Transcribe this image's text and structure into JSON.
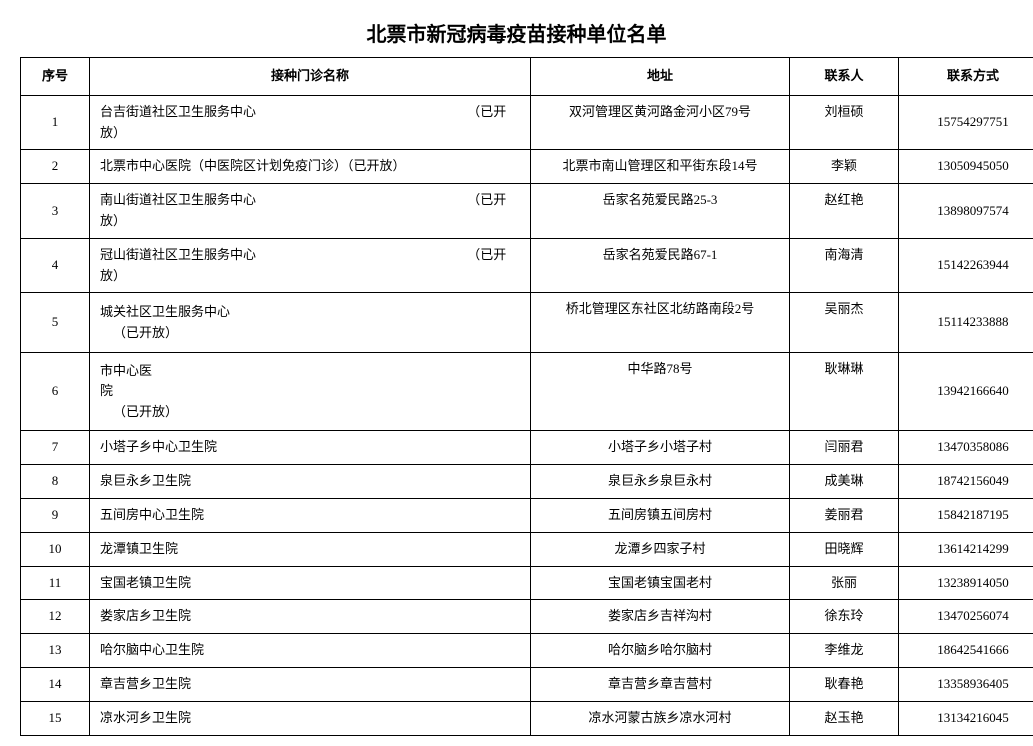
{
  "title": "北票市新冠病毒疫苗接种单位名单",
  "columns": [
    "序号",
    "接种门诊名称",
    "地址",
    "联系人",
    "联系方式"
  ],
  "rows": [
    {
      "seq": "1",
      "name": "台吉街道社区卫生服务中心                                                                 （已开放）",
      "addr": "双河管理区黄河路金河小区79号",
      "person": "刘桓硕",
      "phone": "15754297751",
      "h": "tall"
    },
    {
      "seq": "2",
      "name": "北票市中心医院（中医院区计划免疫门诊）（已开放）",
      "addr": "北票市南山管理区和平街东段14号",
      "person": "李颖",
      "phone": "13050945050",
      "h": ""
    },
    {
      "seq": "3",
      "name": "南山街道社区卫生服务中心                                                                 （已开放）",
      "addr": "岳家名苑爱民路25-3",
      "person": "赵红艳",
      "phone": "13898097574",
      "h": "tall"
    },
    {
      "seq": "4",
      "name": "冠山街道社区卫生服务中心                                                                 （已开放）",
      "addr": "岳家名苑爱民路67-1",
      "person": "南海清",
      "phone": "15142263944",
      "h": "tall"
    },
    {
      "seq": "5",
      "name": "城关社区卫生服务中心\n    （已开放）",
      "addr": "桥北管理区东社区北纺路南段2号",
      "person": "吴丽杰",
      "phone": "15114233888",
      "h": "taller"
    },
    {
      "seq": "6",
      "name": "市中心医\n院\n    （已开放）",
      "addr": "中华路78号",
      "person": "耿琳琳",
      "phone": "13942166640",
      "h": "tallest"
    },
    {
      "seq": "7",
      "name": "小塔子乡中心卫生院",
      "addr": "小塔子乡小塔子村",
      "person": "闫丽君",
      "phone": "13470358086",
      "h": ""
    },
    {
      "seq": "8",
      "name": "泉巨永乡卫生院",
      "addr": "泉巨永乡泉巨永村",
      "person": "成美琳",
      "phone": "18742156049",
      "h": ""
    },
    {
      "seq": "9",
      "name": "五间房中心卫生院",
      "addr": "五间房镇五间房村",
      "person": "姜丽君",
      "phone": "15842187195",
      "h": ""
    },
    {
      "seq": "10",
      "name": "龙潭镇卫生院",
      "addr": "龙潭乡四家子村",
      "person": "田晓辉",
      "phone": "13614214299",
      "h": ""
    },
    {
      "seq": "11",
      "name": "宝国老镇卫生院",
      "addr": "宝国老镇宝国老村",
      "person": "张丽",
      "phone": "13238914050",
      "h": ""
    },
    {
      "seq": "12",
      "name": "娄家店乡卫生院",
      "addr": "娄家店乡吉祥沟村",
      "person": "徐东玲",
      "phone": "13470256074",
      "h": ""
    },
    {
      "seq": "13",
      "name": "哈尔脑中心卫生院",
      "addr": "哈尔脑乡哈尔脑村",
      "person": "李维龙",
      "phone": "18642541666",
      "h": ""
    },
    {
      "seq": "14",
      "name": "章吉营乡卫生院",
      "addr": "章吉营乡章吉营村",
      "person": "耿春艳",
      "phone": "13358936405",
      "h": ""
    },
    {
      "seq": "15",
      "name": "凉水河乡卫生院",
      "addr": "凉水河蒙古族乡凉水河村",
      "person": "赵玉艳",
      "phone": "13134216045",
      "h": ""
    }
  ]
}
